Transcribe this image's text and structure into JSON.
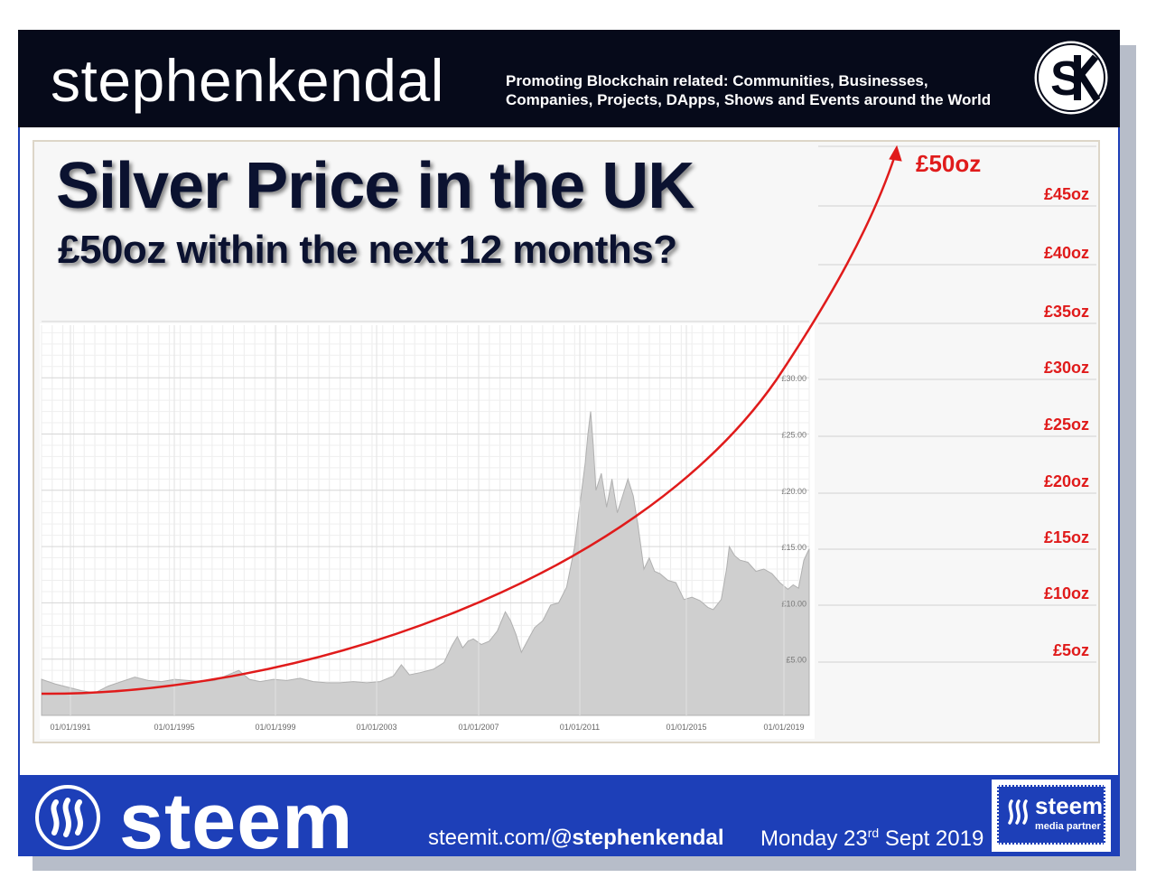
{
  "header": {
    "brand": "stephenkendal",
    "tagline_line1": "Promoting Blockchain related: Communities, Businesses,",
    "tagline_line2": "Companies, Projects, DApps, Shows and Events around the World",
    "logo_icon": "sk-monogram-icon"
  },
  "slide": {
    "title": "Silver Price in the UK",
    "subtitle": "£50oz within the next 12 months?"
  },
  "colors": {
    "header_bg": "#060a1a",
    "footer_bg": "#1d3fb8",
    "forecast_line": "#e01b1b",
    "area_fill": "#cfcfcf"
  },
  "chart_data": {
    "type": "area",
    "x_tick_labels": [
      "01/01/1991",
      "01/01/1995",
      "01/01/1999",
      "01/01/2003",
      "01/01/2007",
      "01/01/2011",
      "01/01/2015",
      "01/01/2019"
    ],
    "y_tick_labels": [
      "£5.00",
      "£10.00",
      "£15.00",
      "£20.00",
      "£25.00",
      "£30.00"
    ],
    "xlim": [
      1990.8,
      2019.6
    ],
    "ylim": [
      0,
      30
    ],
    "series": [
      {
        "values": [
          [
            1990.8,
            3.2
          ],
          [
            1991.3,
            2.8
          ],
          [
            1991.8,
            2.5
          ],
          [
            1992.3,
            2.2
          ],
          [
            1992.8,
            2.0
          ],
          [
            1993.3,
            2.6
          ],
          [
            1993.8,
            3.0
          ],
          [
            1994.3,
            3.4
          ],
          [
            1994.8,
            3.1
          ],
          [
            1995.3,
            3.0
          ],
          [
            1995.8,
            3.2
          ],
          [
            1996.3,
            3.1
          ],
          [
            1996.8,
            3.0
          ],
          [
            1997.3,
            3.1
          ],
          [
            1997.8,
            3.6
          ],
          [
            1998.2,
            4.0
          ],
          [
            1998.6,
            3.2
          ],
          [
            1999.0,
            3.0
          ],
          [
            1999.5,
            3.2
          ],
          [
            2000.0,
            3.1
          ],
          [
            2000.5,
            3.3
          ],
          [
            2001.0,
            3.0
          ],
          [
            2001.5,
            2.9
          ],
          [
            2002.0,
            2.9
          ],
          [
            2002.5,
            3.0
          ],
          [
            2003.0,
            2.9
          ],
          [
            2003.5,
            3.0
          ],
          [
            2004.0,
            3.5
          ],
          [
            2004.3,
            4.5
          ],
          [
            2004.6,
            3.6
          ],
          [
            2005.0,
            3.8
          ],
          [
            2005.5,
            4.1
          ],
          [
            2005.9,
            4.7
          ],
          [
            2006.2,
            6.2
          ],
          [
            2006.4,
            7.0
          ],
          [
            2006.6,
            6.0
          ],
          [
            2006.8,
            6.6
          ],
          [
            2007.0,
            6.8
          ],
          [
            2007.3,
            6.3
          ],
          [
            2007.6,
            6.6
          ],
          [
            2007.9,
            7.5
          ],
          [
            2008.2,
            9.2
          ],
          [
            2008.4,
            8.4
          ],
          [
            2008.6,
            7.2
          ],
          [
            2008.8,
            5.6
          ],
          [
            2009.0,
            6.5
          ],
          [
            2009.3,
            7.8
          ],
          [
            2009.6,
            8.4
          ],
          [
            2009.9,
            9.8
          ],
          [
            2010.2,
            10.0
          ],
          [
            2010.5,
            11.4
          ],
          [
            2010.8,
            15.0
          ],
          [
            2011.0,
            18.8
          ],
          [
            2011.2,
            22.5
          ],
          [
            2011.3,
            25.0
          ],
          [
            2011.4,
            27.0
          ],
          [
            2011.5,
            24.0
          ],
          [
            2011.6,
            20.0
          ],
          [
            2011.8,
            21.5
          ],
          [
            2012.0,
            18.5
          ],
          [
            2012.2,
            21.0
          ],
          [
            2012.4,
            18.0
          ],
          [
            2012.6,
            19.5
          ],
          [
            2012.8,
            21.0
          ],
          [
            2013.0,
            19.5
          ],
          [
            2013.2,
            16.5
          ],
          [
            2013.4,
            13.0
          ],
          [
            2013.6,
            14.0
          ],
          [
            2013.8,
            12.8
          ],
          [
            2014.0,
            12.6
          ],
          [
            2014.3,
            12.0
          ],
          [
            2014.6,
            11.8
          ],
          [
            2014.9,
            10.3
          ],
          [
            2015.2,
            10.5
          ],
          [
            2015.5,
            10.2
          ],
          [
            2015.8,
            9.6
          ],
          [
            2016.0,
            9.4
          ],
          [
            2016.3,
            10.3
          ],
          [
            2016.5,
            13.0
          ],
          [
            2016.6,
            15.0
          ],
          [
            2016.8,
            14.2
          ],
          [
            2017.0,
            13.8
          ],
          [
            2017.3,
            13.6
          ],
          [
            2017.6,
            12.8
          ],
          [
            2017.9,
            13.0
          ],
          [
            2018.2,
            12.6
          ],
          [
            2018.5,
            11.8
          ],
          [
            2018.8,
            11.2
          ],
          [
            2019.0,
            11.6
          ],
          [
            2019.2,
            11.3
          ],
          [
            2019.4,
            13.8
          ],
          [
            2019.6,
            14.8
          ]
        ]
      }
    ],
    "grid": true,
    "forecast_axis_labels": [
      "£5oz",
      "£10oz",
      "£15oz",
      "£20oz",
      "£25oz",
      "£30oz",
      "£35oz",
      "£40oz",
      "£45oz"
    ],
    "forecast_target_label": "£50oz"
  },
  "footer": {
    "steem_word": "steem",
    "site_prefix": "steemit.com/",
    "site_handle": "@stephenkendal",
    "date_prefix": "Monday 23",
    "date_suffix_sup": "rd",
    "date_rest": " Sept 2019",
    "partner_name": "steem",
    "partner_sub": "media partner"
  }
}
